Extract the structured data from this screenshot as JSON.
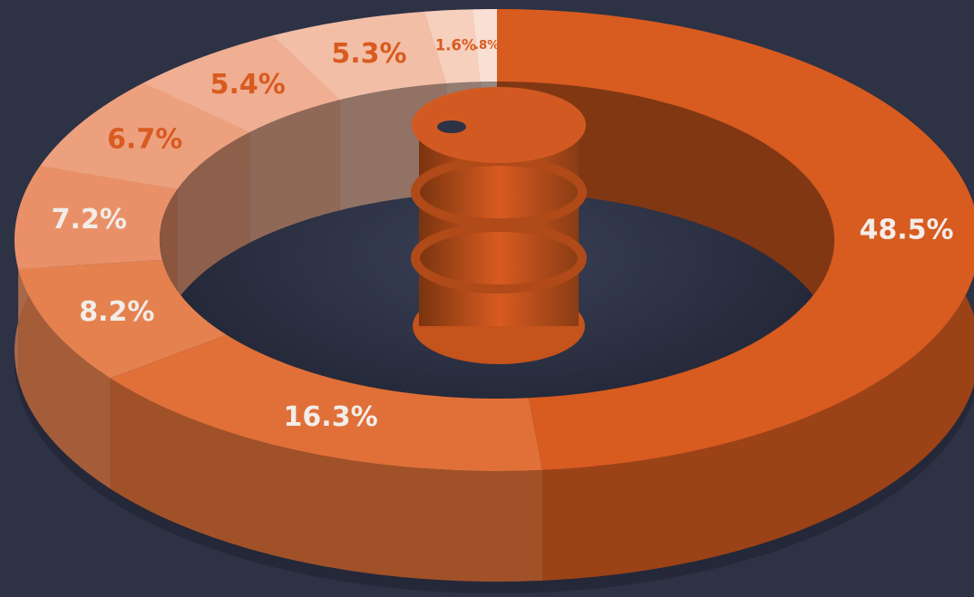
{
  "chart_data": {
    "type": "donut",
    "values": [
      48.5,
      16.3,
      8.2,
      7.2,
      6.7,
      5.4,
      5.3,
      1.6,
      0.8
    ],
    "value_labels": [
      "48.5%",
      "16.3%",
      "8.2%",
      "7.2%",
      "6.7%",
      "5.4%",
      "5.3%",
      "1.6%",
      ".8%"
    ],
    "colors": [
      "#d85b20",
      "#e07038",
      "#e5814f",
      "#ea9068",
      "#eda07e",
      "#f0ae92",
      "#f3bea6",
      "#f6cfbd",
      "#fadfd4"
    ]
  }
}
